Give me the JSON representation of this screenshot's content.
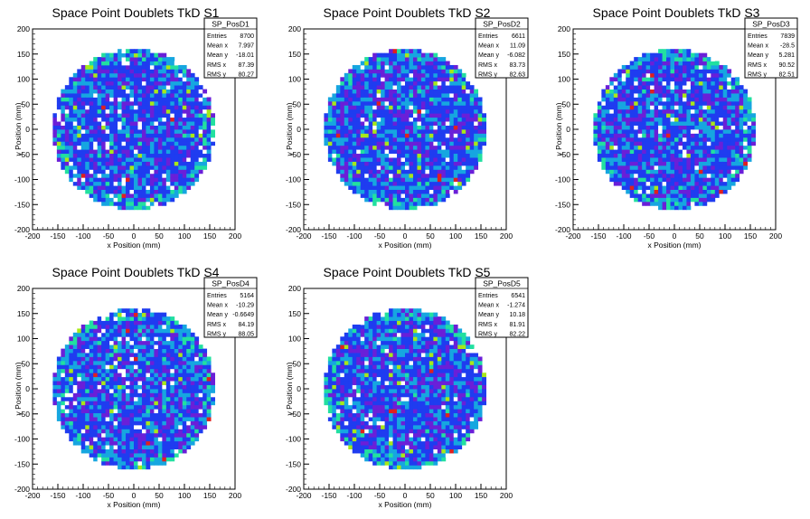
{
  "chart_data": [
    {
      "type": "heatmap",
      "title": "Space Point Doublets TkD S1",
      "xlabel": "x Position (mm)",
      "ylabel": "y Position (mm)",
      "xlim": [
        -200,
        200
      ],
      "ylim": [
        -200,
        200
      ],
      "xticks": [
        -200,
        -150,
        -100,
        -50,
        0,
        50,
        100,
        150,
        200
      ],
      "yticks": [
        -200,
        -150,
        -100,
        -50,
        0,
        50,
        100,
        150,
        200
      ],
      "disk_radius": 160,
      "grid": false,
      "stats": {
        "name": "SP_PosD1",
        "rows": [
          {
            "label": "Entries",
            "value": "8700"
          },
          {
            "label": "Mean x",
            "value": "7.997"
          },
          {
            "label": "Mean y",
            "value": "-18.01"
          },
          {
            "label": "RMS x",
            "value": "87.39"
          },
          {
            "label": "RMS y",
            "value": "80.27"
          }
        ]
      }
    },
    {
      "type": "heatmap",
      "title": "Space Point Doublets TkD S2",
      "xlabel": "x Position (mm)",
      "ylabel": "y Position (mm)",
      "xlim": [
        -200,
        200
      ],
      "ylim": [
        -200,
        200
      ],
      "xticks": [
        -200,
        -150,
        -100,
        -50,
        0,
        50,
        100,
        150,
        200
      ],
      "yticks": [
        -200,
        -150,
        -100,
        -50,
        0,
        50,
        100,
        150,
        200
      ],
      "disk_radius": 160,
      "grid": false,
      "stats": {
        "name": "SP_PosD2",
        "rows": [
          {
            "label": "Entries",
            "value": "6611"
          },
          {
            "label": "Mean x",
            "value": "11.09"
          },
          {
            "label": "Mean y",
            "value": "-6.082"
          },
          {
            "label": "RMS x",
            "value": "83.73"
          },
          {
            "label": "RMS y",
            "value": "82.63"
          }
        ]
      }
    },
    {
      "type": "heatmap",
      "title": "Space Point Doublets TkD S3",
      "xlabel": "x Position (mm)",
      "ylabel": "y Position (mm)",
      "xlim": [
        -200,
        200
      ],
      "ylim": [
        -200,
        200
      ],
      "xticks": [
        -200,
        -150,
        -100,
        -50,
        0,
        50,
        100,
        150,
        200
      ],
      "yticks": [
        -200,
        -150,
        -100,
        -50,
        0,
        50,
        100,
        150,
        200
      ],
      "disk_radius": 160,
      "grid": false,
      "stats": {
        "name": "SP_PosD3",
        "rows": [
          {
            "label": "Entries",
            "value": "7839"
          },
          {
            "label": "Mean x",
            "value": "-28.5"
          },
          {
            "label": "Mean y",
            "value": "5.281"
          },
          {
            "label": "RMS x",
            "value": "90.52"
          },
          {
            "label": "RMS y",
            "value": "82.51"
          }
        ]
      }
    },
    {
      "type": "heatmap",
      "title": "Space Point Doublets TkD S4",
      "xlabel": "x Position (mm)",
      "ylabel": "y Position (mm)",
      "xlim": [
        -200,
        200
      ],
      "ylim": [
        -200,
        200
      ],
      "xticks": [
        -200,
        -150,
        -100,
        -50,
        0,
        50,
        100,
        150,
        200
      ],
      "yticks": [
        -200,
        -150,
        -100,
        -50,
        0,
        50,
        100,
        150,
        200
      ],
      "disk_radius": 160,
      "grid": false,
      "stats": {
        "name": "SP_PosD4",
        "rows": [
          {
            "label": "Entries",
            "value": "5164"
          },
          {
            "label": "Mean x",
            "value": "-10.29"
          },
          {
            "label": "Mean y",
            "value": "-0.6649"
          },
          {
            "label": "RMS x",
            "value": "84.19"
          },
          {
            "label": "RMS y",
            "value": "88.05"
          }
        ]
      }
    },
    {
      "type": "heatmap",
      "title": "Space Point Doublets TkD S5",
      "xlabel": "x Position (mm)",
      "ylabel": "y Position (mm)",
      "xlim": [
        -200,
        200
      ],
      "ylim": [
        -200,
        200
      ],
      "xticks": [
        -200,
        -150,
        -100,
        -50,
        0,
        50,
        100,
        150,
        200
      ],
      "yticks": [
        -200,
        -150,
        -100,
        -50,
        0,
        50,
        100,
        150,
        200
      ],
      "disk_radius": 160,
      "grid": false,
      "stats": {
        "name": "SP_PosD5",
        "rows": [
          {
            "label": "Entries",
            "value": "6541"
          },
          {
            "label": "Mean x",
            "value": "-1.274"
          },
          {
            "label": "Mean y",
            "value": "10.18"
          },
          {
            "label": "RMS x",
            "value": "81.91"
          },
          {
            "label": "RMS y",
            "value": "82.22"
          }
        ]
      }
    }
  ],
  "colors": {
    "empty": "#ffffff",
    "low": "#6a1fd8",
    "mid_low": "#1f3cf0",
    "mid": "#16a6e0",
    "mid_high": "#22e0a0",
    "high": "#a8e818",
    "peak": "#e0201e"
  }
}
